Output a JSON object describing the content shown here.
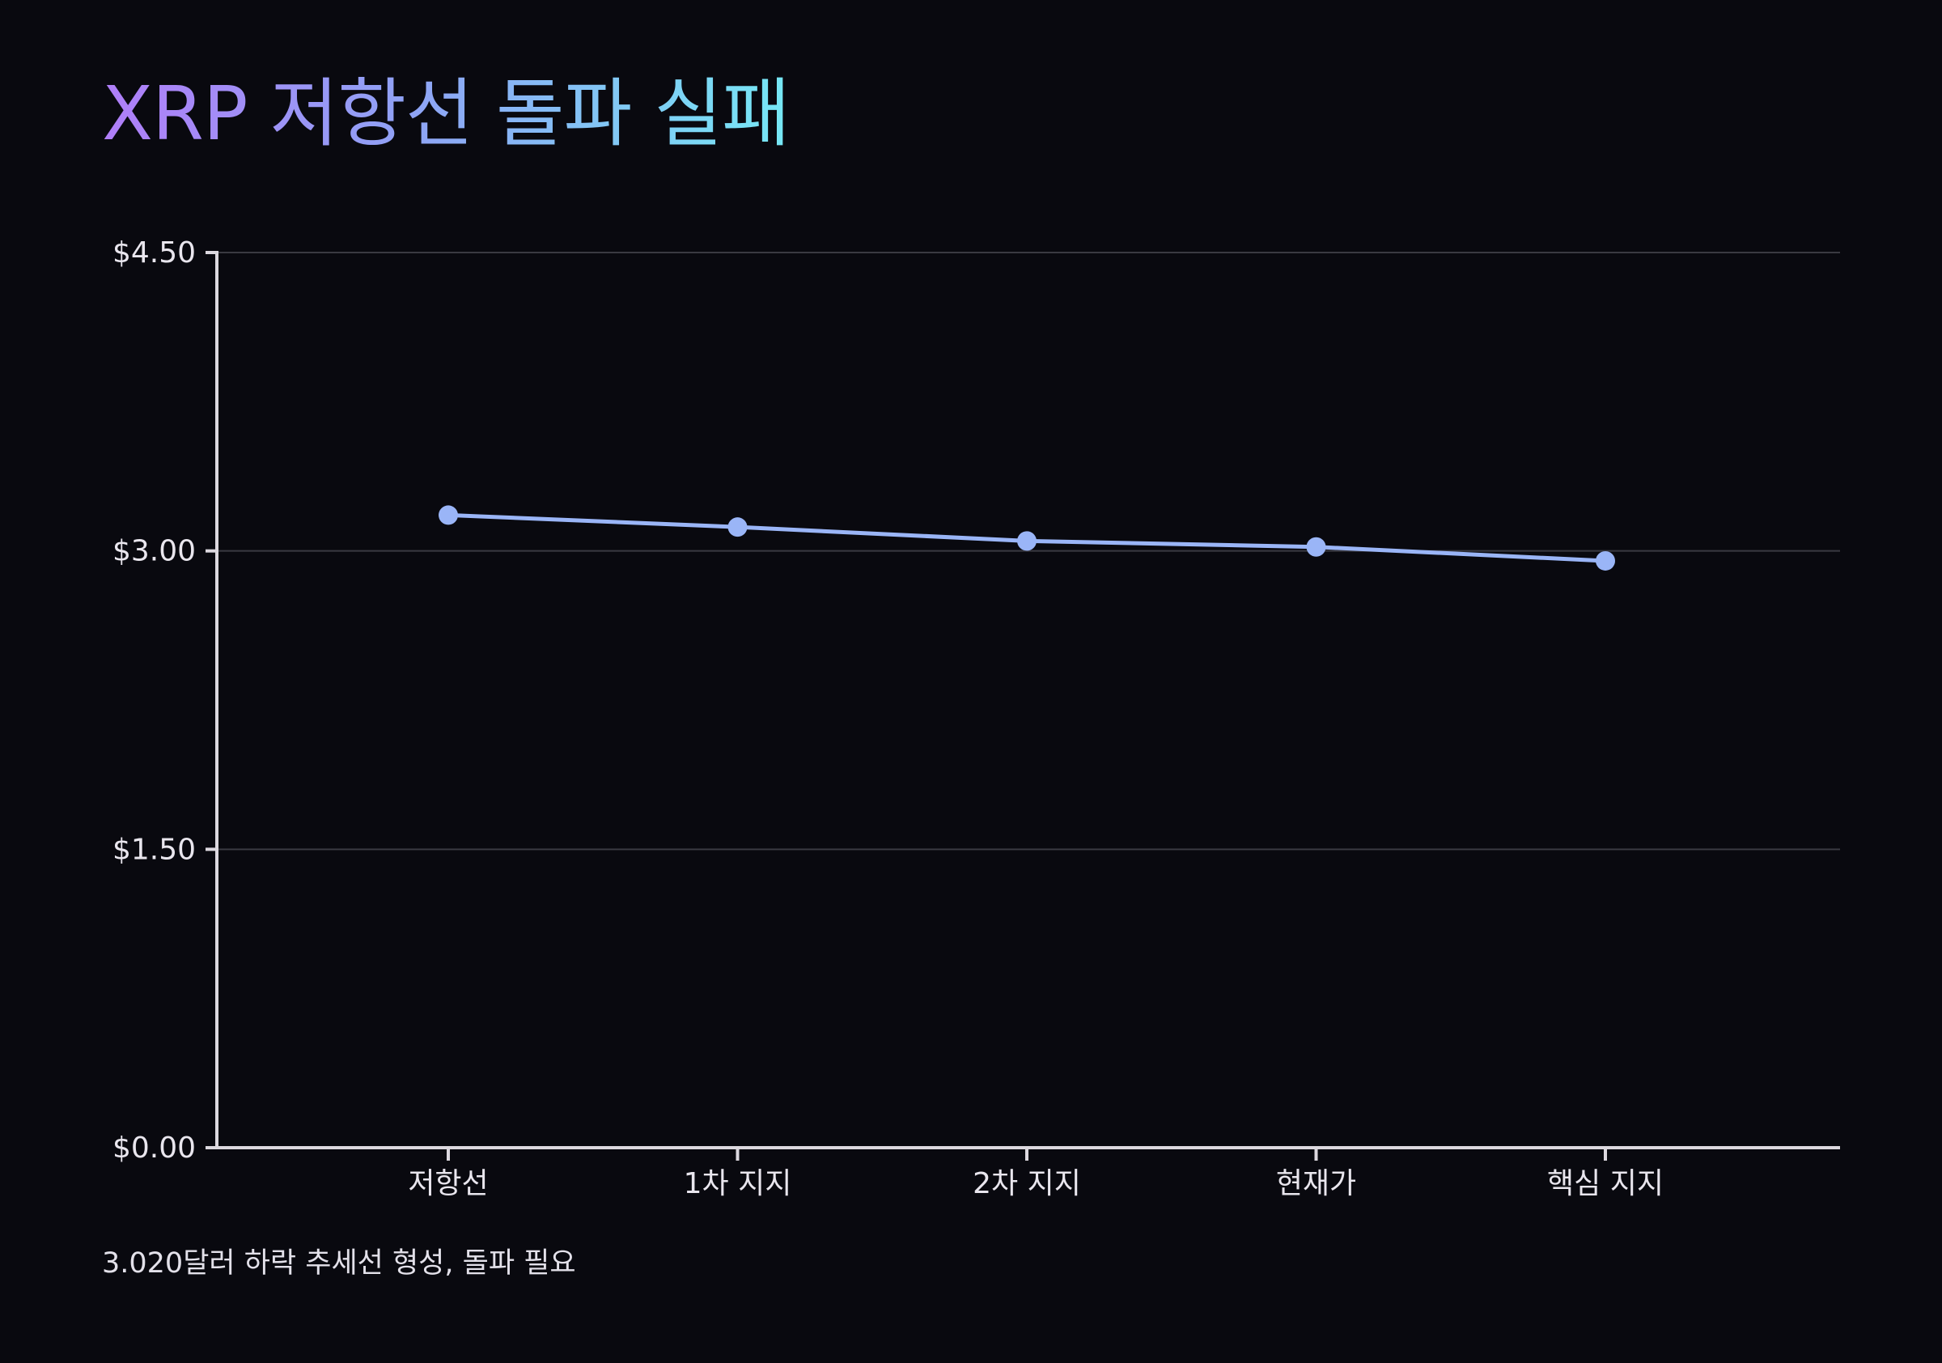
{
  "title": "XRP 저항선 돌파 실패",
  "caption": "3.020달러 하락 추세선 형성, 돌파 필요",
  "colors": {
    "background": "#09090f",
    "line": "#9ab5f7",
    "point": "#9ab5f7",
    "axis": "#dcd8df",
    "grid": "#3a3a42",
    "title_gradient": [
      "#b07ef8",
      "#8fa3f5",
      "#76e8f5"
    ]
  },
  "chart_data": {
    "type": "line",
    "title": "XRP 저항선 돌파 실패",
    "xlabel": "",
    "ylabel": "",
    "categories": [
      "저항선",
      "1차 지지",
      "2차 지지",
      "현재가",
      "핵심 지지"
    ],
    "series": [
      {
        "values": [
          3.18,
          3.12,
          3.05,
          3.02,
          2.95
        ]
      }
    ],
    "ylim": [
      0,
      4.5
    ],
    "yticks": [
      0,
      1.5,
      3.0,
      4.5
    ],
    "ytick_labels": [
      "$0.00",
      "$1.50",
      "$3.00",
      "$4.50"
    ],
    "grid": true,
    "legend": "none"
  }
}
